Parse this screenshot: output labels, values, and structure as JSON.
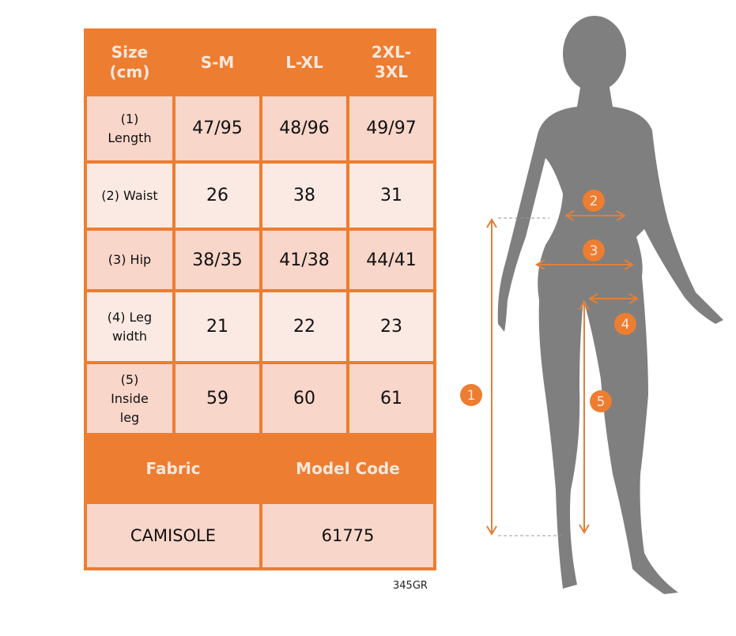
{
  "table": {
    "headers": [
      "Size (cm)",
      "S-M",
      "L-XL",
      "2XL-3XL"
    ],
    "rows": [
      {
        "label": "(1) Length",
        "values": [
          "47/95",
          "48/96",
          "49/97"
        ]
      },
      {
        "label": "(2) Waist",
        "values": [
          "26",
          "38",
          "31"
        ]
      },
      {
        "label": "(3) Hip",
        "values": [
          "38/35",
          "41/38",
          "44/41"
        ]
      },
      {
        "label": "(4) Leg width",
        "values": [
          "21",
          "22",
          "23"
        ]
      },
      {
        "label": "(5) Inside leg",
        "values": [
          "59",
          "60",
          "61"
        ]
      }
    ],
    "footer_headers": [
      "Fabric",
      "Model Code"
    ],
    "footer_values": [
      "CAMISOLE",
      "61775"
    ]
  },
  "product_code": "345GR",
  "diagram": {
    "markers": [
      "1",
      "2",
      "3",
      "4",
      "5"
    ],
    "colors": {
      "accent": "#ED7D31",
      "silhouette": "#7F7F7F"
    }
  }
}
